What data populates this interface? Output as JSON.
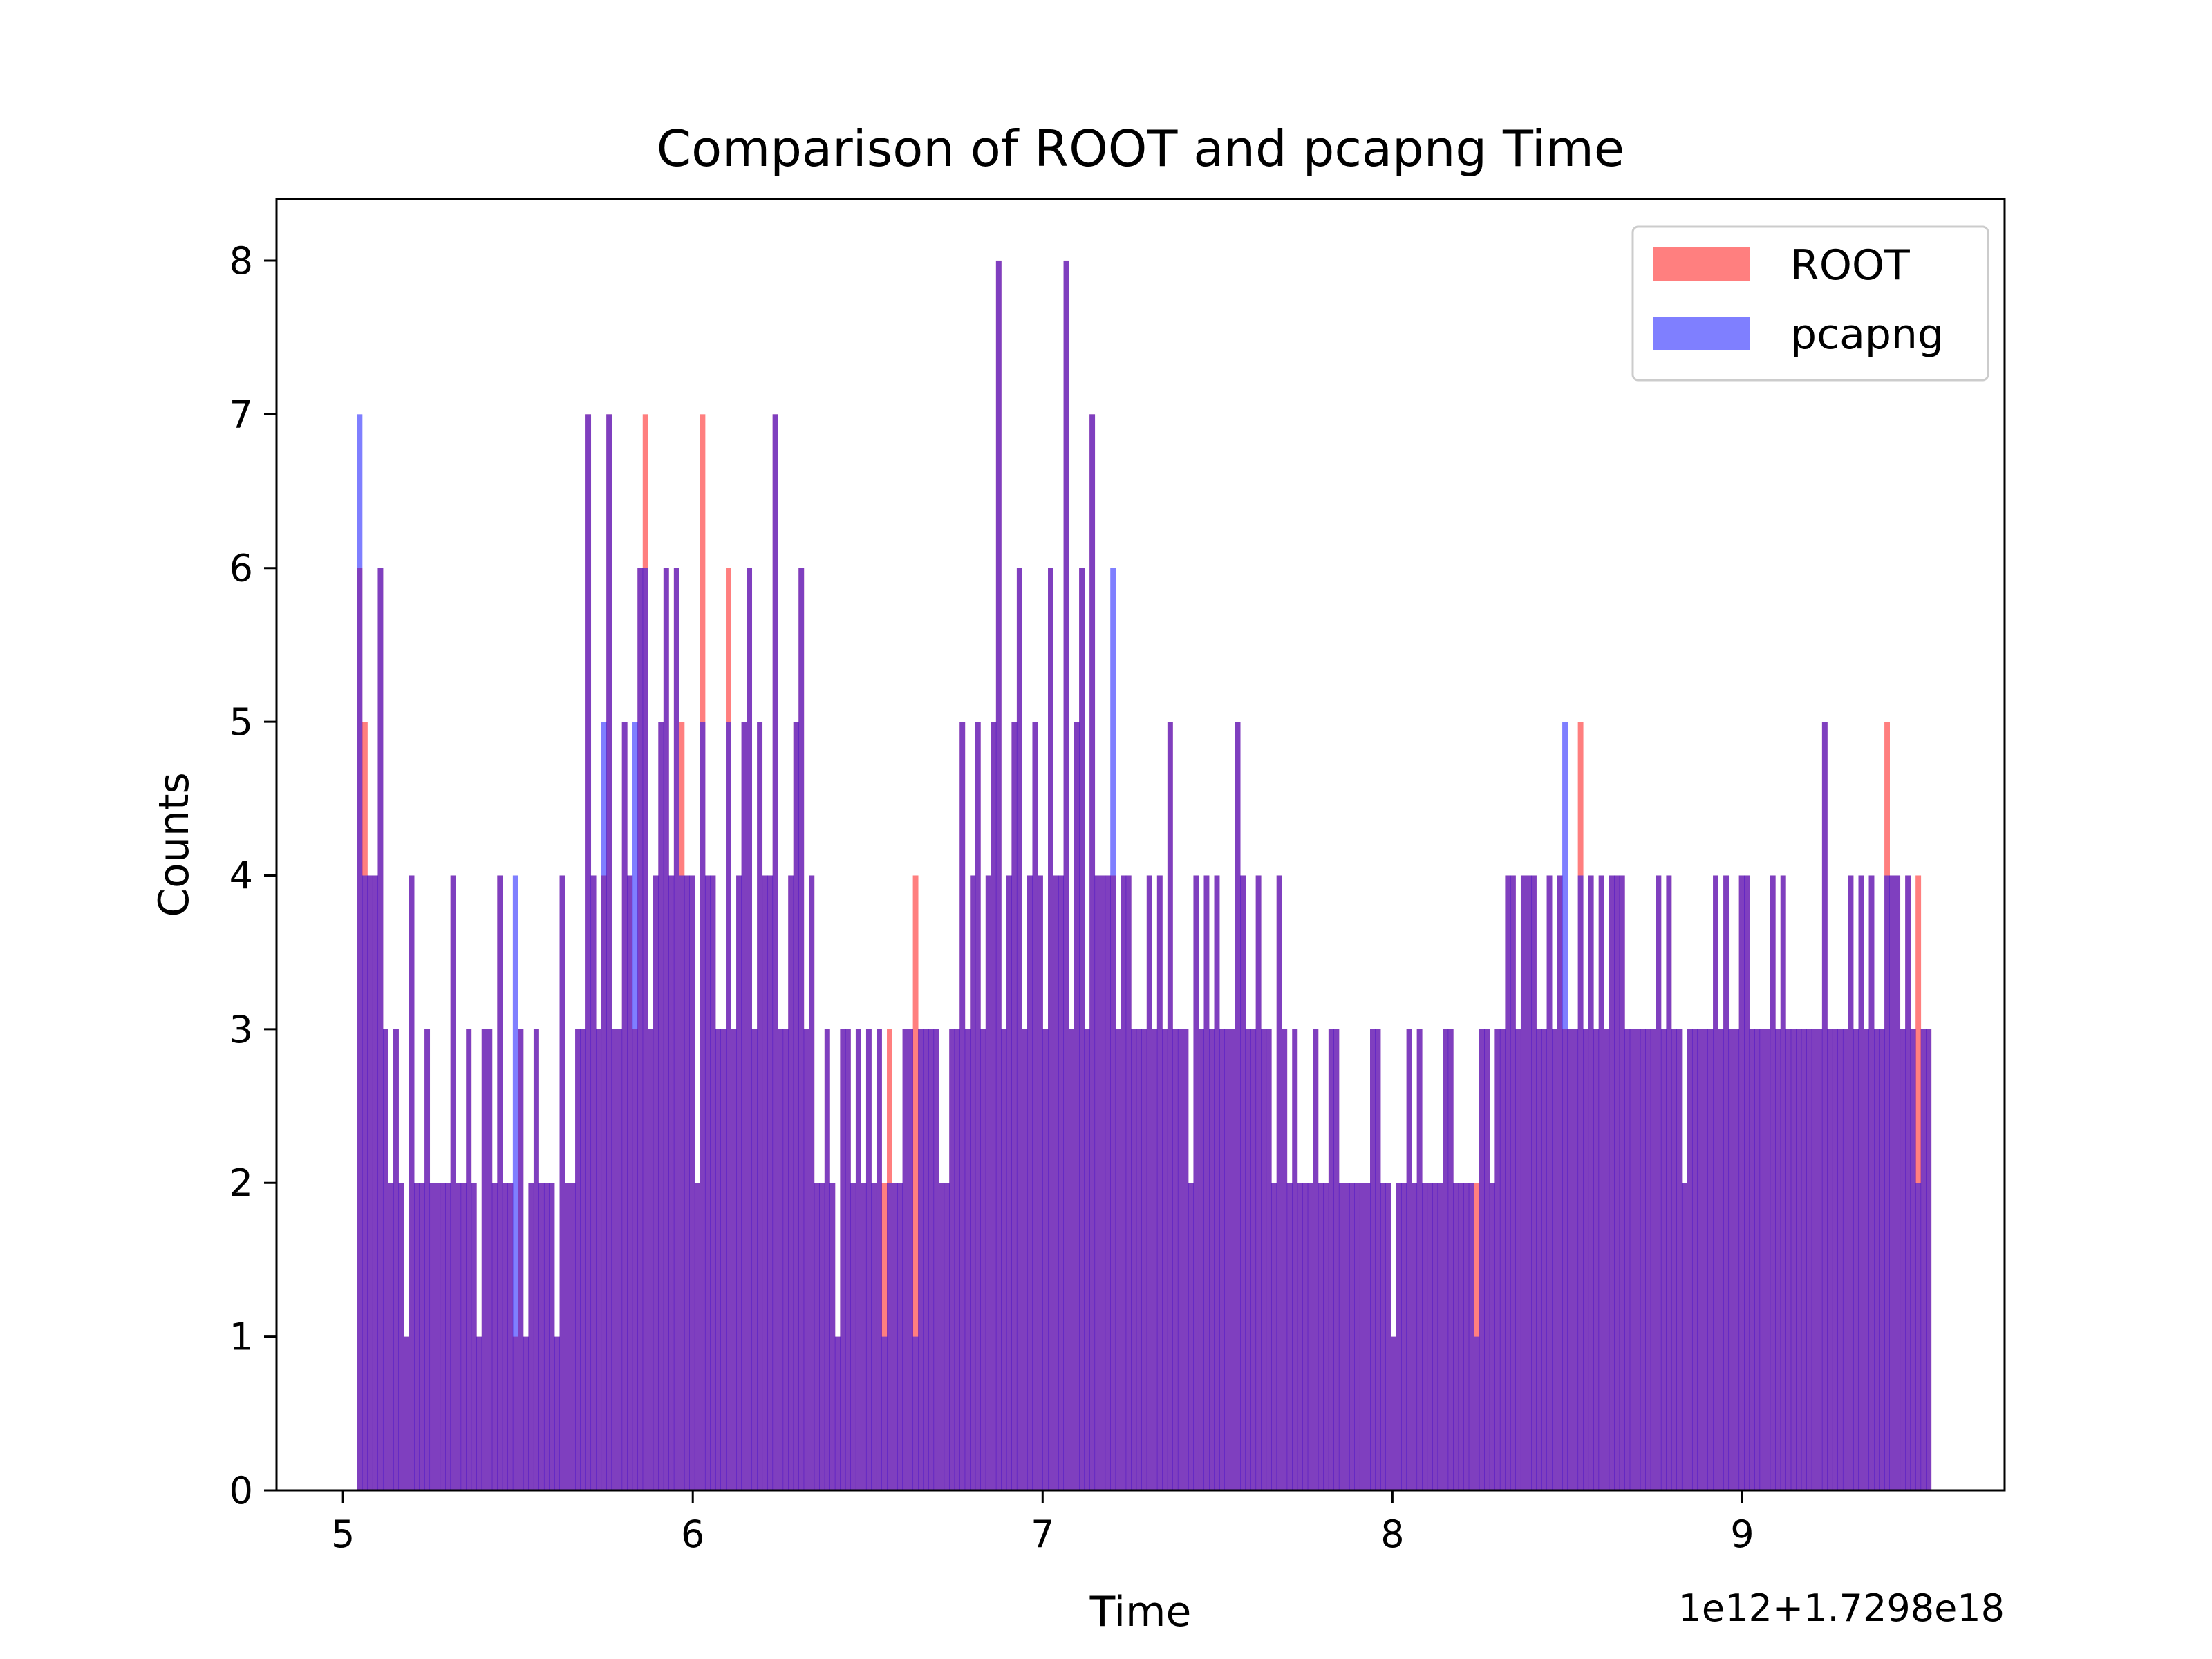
{
  "chart_data": {
    "type": "bar",
    "title": "Comparison of ROOT and pcapng Time",
    "xlabel": "Time",
    "ylabel": "Counts",
    "offset_label": "1e12+1.7298e18",
    "xlim": [
      4.81,
      9.75
    ],
    "ylim": [
      0,
      8.4
    ],
    "xticks": [
      5,
      6,
      7,
      8,
      9
    ],
    "yticks": [
      0,
      1,
      2,
      3,
      4,
      5,
      6,
      7,
      8
    ],
    "bins": 300,
    "bin_range": [
      5.04,
      9.54
    ],
    "legend": {
      "position": "upper right"
    },
    "series": [
      {
        "name": "ROOT",
        "color": "#ff0000",
        "alpha": 0.5,
        "counts": [
          6,
          5,
          4,
          4,
          6,
          3,
          2,
          3,
          2,
          1,
          4,
          2,
          2,
          3,
          2,
          2,
          2,
          2,
          4,
          2,
          2,
          3,
          2,
          1,
          3,
          3,
          2,
          4,
          2,
          2,
          1,
          3,
          1,
          2,
          3,
          2,
          2,
          2,
          1,
          4,
          2,
          2,
          3,
          3,
          7,
          4,
          3,
          4,
          7,
          3,
          3,
          5,
          4,
          3,
          6,
          7,
          3,
          4,
          5,
          6,
          4,
          6,
          5,
          4,
          4,
          2,
          7,
          4,
          4,
          3,
          3,
          6,
          3,
          4,
          5,
          6,
          3,
          5,
          4,
          4,
          7,
          3,
          3,
          4,
          5,
          6,
          3,
          4,
          2,
          2,
          3,
          2,
          1,
          3,
          3,
          2,
          3,
          2,
          3,
          2,
          3,
          2,
          3,
          2,
          2,
          3,
          3,
          4,
          3,
          3,
          3,
          3,
          2,
          2,
          3,
          3,
          5,
          3,
          4,
          5,
          3,
          4,
          5,
          8,
          3,
          4,
          5,
          6,
          3,
          4,
          5,
          4,
          3,
          6,
          4,
          4,
          8,
          3,
          5,
          6,
          3,
          7,
          4,
          4,
          4,
          4,
          3,
          4,
          4,
          3,
          3,
          3,
          4,
          3,
          4,
          3,
          5,
          3,
          3,
          3,
          2,
          4,
          3,
          4,
          3,
          4,
          3,
          3,
          3,
          5,
          4,
          3,
          3,
          4,
          3,
          3,
          2,
          4,
          3,
          2,
          3,
          2,
          2,
          2,
          3,
          2,
          2,
          3,
          3,
          2,
          2,
          2,
          2,
          2,
          2,
          3,
          3,
          2,
          2,
          1,
          2,
          2,
          3,
          2,
          3,
          2,
          2,
          2,
          2,
          3,
          3,
          2,
          2,
          2,
          2,
          2,
          3,
          3,
          2,
          3,
          3,
          4,
          4,
          3,
          4,
          4,
          4,
          3,
          3,
          4,
          3,
          4,
          3,
          3,
          3,
          5,
          3,
          4,
          3,
          4,
          3,
          4,
          4,
          4,
          3,
          3,
          3,
          3,
          3,
          3,
          4,
          3,
          4,
          3,
          3,
          2,
          3,
          3,
          3,
          3,
          3,
          4,
          3,
          4,
          3,
          3,
          4,
          4,
          3,
          3,
          3,
          3,
          4,
          3,
          4,
          3,
          3,
          3,
          3,
          3,
          3,
          3,
          5,
          3,
          3,
          3,
          3,
          4,
          3,
          4,
          3,
          4,
          3,
          3,
          5,
          4,
          4,
          3,
          4,
          3,
          4,
          3,
          3
        ],
        "note": "series counts per bin"
      },
      {
        "name": "pcapng",
        "color": "#0000ff",
        "alpha": 0.5,
        "counts": [
          7,
          4,
          4,
          4,
          6,
          3,
          2,
          3,
          2,
          1,
          4,
          2,
          2,
          3,
          2,
          2,
          2,
          2,
          4,
          2,
          2,
          3,
          2,
          1,
          3,
          3,
          2,
          4,
          2,
          2,
          4,
          3,
          1,
          2,
          3,
          2,
          2,
          2,
          1,
          4,
          2,
          2,
          3,
          3,
          7,
          4,
          3,
          5,
          7,
          3,
          3,
          5,
          4,
          5,
          6,
          6,
          3,
          4,
          5,
          6,
          4,
          6,
          4,
          4,
          4,
          2,
          5,
          4,
          4,
          3,
          3,
          5,
          3,
          4,
          5,
          6,
          3,
          5,
          4,
          4,
          7,
          3,
          3,
          4,
          5,
          6,
          3,
          4,
          2,
          2,
          3,
          2,
          1,
          3,
          3,
          2,
          3,
          2,
          3,
          2,
          3,
          1,
          2,
          2,
          2,
          3,
          3,
          1,
          3,
          3,
          3,
          3,
          2,
          2,
          3,
          3,
          5,
          3,
          4,
          5,
          3,
          4,
          5,
          8,
          3,
          4,
          5,
          6,
          3,
          4,
          5,
          4,
          3,
          6,
          4,
          4,
          8,
          3,
          5,
          6,
          3,
          7,
          4,
          4,
          4,
          6,
          3,
          4,
          4,
          3,
          3,
          3,
          4,
          3,
          4,
          3,
          5,
          3,
          3,
          3,
          2,
          4,
          3,
          4,
          3,
          4,
          3,
          3,
          3,
          5,
          4,
          3,
          3,
          4,
          3,
          3,
          2,
          4,
          3,
          2,
          3,
          2,
          2,
          2,
          3,
          2,
          2,
          3,
          3,
          2,
          2,
          2,
          2,
          2,
          2,
          3,
          3,
          2,
          2,
          1,
          2,
          2,
          3,
          2,
          3,
          2,
          2,
          2,
          2,
          3,
          3,
          2,
          2,
          2,
          2,
          1,
          3,
          3,
          2,
          3,
          3,
          4,
          4,
          3,
          4,
          4,
          4,
          3,
          3,
          4,
          3,
          4,
          5,
          3,
          3,
          4,
          3,
          4,
          3,
          4,
          3,
          4,
          4,
          4,
          3,
          3,
          3,
          3,
          3,
          3,
          4,
          3,
          4,
          3,
          3,
          2,
          3,
          3,
          3,
          3,
          3,
          4,
          3,
          4,
          3,
          3,
          4,
          4,
          3,
          3,
          3,
          3,
          4,
          3,
          4,
          3,
          3,
          3,
          3,
          3,
          3,
          3,
          5,
          3,
          3,
          3,
          3,
          4,
          3,
          4,
          3,
          4,
          3,
          3,
          4,
          4,
          4,
          3,
          4,
          3,
          2,
          3,
          3
        ],
        "note": "series counts per bin"
      }
    ]
  }
}
